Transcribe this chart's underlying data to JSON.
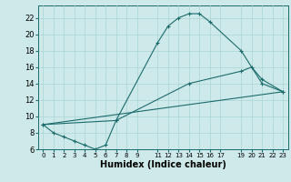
{
  "xlabel": "Humidex (Indice chaleur)",
  "background_color": "#cee9e9",
  "grid_color": "#aad4d4",
  "line_color": "#1a6b6b",
  "xlim": [
    -0.5,
    23.5
  ],
  "ylim": [
    6,
    23.5
  ],
  "yticks": [
    6,
    8,
    10,
    12,
    14,
    16,
    18,
    20,
    22
  ],
  "xticks": [
    0,
    1,
    2,
    3,
    4,
    5,
    6,
    7,
    8,
    9,
    11,
    12,
    13,
    14,
    15,
    16,
    17,
    19,
    20,
    21,
    22,
    23
  ],
  "line1_x": [
    0,
    1,
    2,
    3,
    4,
    5,
    6,
    7,
    11,
    12,
    13,
    14,
    15,
    16,
    19,
    21,
    23
  ],
  "line1_y": [
    9,
    8,
    7.5,
    7,
    6.5,
    6,
    6.5,
    9.5,
    19,
    21,
    22,
    22.5,
    22.5,
    21.5,
    18,
    14,
    13
  ],
  "line2_x": [
    0,
    7,
    14,
    19,
    20,
    21,
    23
  ],
  "line2_y": [
    9,
    9.5,
    14,
    15.5,
    16,
    14.5,
    13
  ],
  "line3_x": [
    0,
    23
  ],
  "line3_y": [
    9,
    13
  ],
  "xlabel_fontsize": 7,
  "tick_fontsize": 5,
  "ytick_fontsize": 6
}
